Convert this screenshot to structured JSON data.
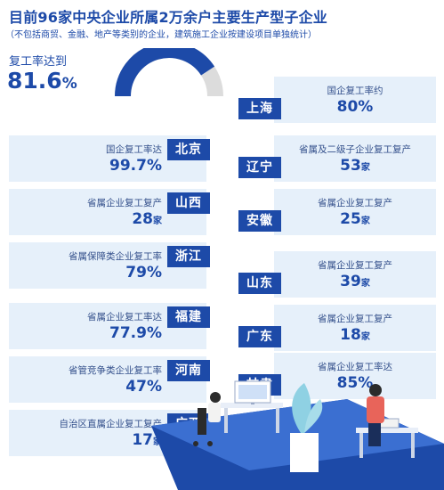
{
  "title": "目前96家中央企业所属2万余户主要生产型子企业",
  "subtitle": "（不包括商贸、金融、地产等类别的企业，建筑施工企业按建设项目单独统计）",
  "resumption": {
    "label": "复工率达到",
    "value": "81.6",
    "unit": "%",
    "fraction": 0.816
  },
  "regions": [
    {
      "side": "right",
      "name": "上海",
      "label": "国企复工率约",
      "value": "80%",
      "unit": ""
    },
    {
      "side": "left",
      "name": "北京",
      "label": "国企复工率达",
      "value": "99.7%",
      "unit": ""
    },
    {
      "side": "right",
      "name": "辽宁",
      "label": "省属及二级子企业复工复产",
      "value": "53",
      "unit": "家"
    },
    {
      "side": "left",
      "name": "山西",
      "label": "省属企业复工复产",
      "value": "28",
      "unit": "家"
    },
    {
      "side": "right",
      "name": "安徽",
      "label": "省属企业复工复产",
      "value": "25",
      "unit": "家"
    },
    {
      "side": "left",
      "name": "浙江",
      "label": "省属保障类企业复工率",
      "value": "79%",
      "unit": ""
    },
    {
      "side": "right",
      "name": "山东",
      "label": "省属企业复工复产",
      "value": "39",
      "unit": "家"
    },
    {
      "side": "left",
      "name": "福建",
      "label": "省属企业复工率达",
      "value": "77.9%",
      "unit": ""
    },
    {
      "side": "right",
      "name": "广东",
      "label": "省属企业复工复产",
      "value": "18",
      "unit": "家"
    },
    {
      "side": "left",
      "name": "河南",
      "label": "省管竞争类企业复工率",
      "value": "47%",
      "unit": ""
    },
    {
      "side": "right",
      "name": "甘肃",
      "label": "省属企业复工率达",
      "value": "85%",
      "unit": ""
    },
    {
      "side": "left",
      "name": "广西",
      "label": "自治区直属企业复工复产",
      "value": "17",
      "unit": "家"
    }
  ],
  "colors": {
    "primary": "#1d4aa8",
    "box": "#e6f0fa",
    "gauge_track": "#dcdcdc",
    "accent": "#e8645a"
  }
}
